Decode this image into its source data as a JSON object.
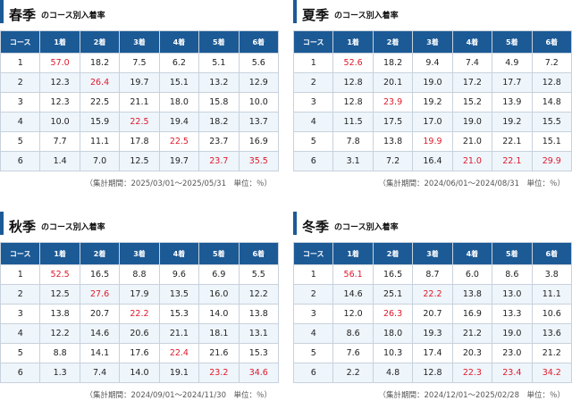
{
  "colors": {
    "header_bg": "#1c5a96",
    "alt_row_bg": "#eef5fb",
    "highlight": "#e0192b",
    "border": "#c8d2dc"
  },
  "headers": [
    "コース",
    "1着",
    "2着",
    "3着",
    "4着",
    "5着",
    "6着"
  ],
  "subtitle": "のコース別入着率",
  "panels": [
    {
      "season": "春季",
      "rows": [
        [
          "1",
          "57.0",
          "18.2",
          "7.5",
          "6.2",
          "5.1",
          "5.6"
        ],
        [
          "2",
          "12.3",
          "26.4",
          "19.7",
          "15.1",
          "13.2",
          "12.9"
        ],
        [
          "3",
          "12.3",
          "22.5",
          "21.1",
          "18.0",
          "15.8",
          "10.0"
        ],
        [
          "4",
          "10.0",
          "15.9",
          "22.5",
          "19.4",
          "18.2",
          "13.7"
        ],
        [
          "5",
          "7.7",
          "11.1",
          "17.8",
          "22.5",
          "23.7",
          "16.9"
        ],
        [
          "6",
          "1.4",
          "7.0",
          "12.5",
          "19.7",
          "23.7",
          "35.5"
        ]
      ],
      "highlight": [
        [
          0,
          1
        ],
        [
          1,
          2
        ],
        [
          3,
          3
        ],
        [
          4,
          4
        ],
        [
          5,
          5
        ],
        [
          5,
          6
        ]
      ],
      "note": "（集計期間：2025/03/01〜2025/05/31　単位：％）"
    },
    {
      "season": "夏季",
      "rows": [
        [
          "1",
          "52.6",
          "18.2",
          "9.4",
          "7.4",
          "4.9",
          "7.2"
        ],
        [
          "2",
          "12.8",
          "20.1",
          "19.0",
          "17.2",
          "17.7",
          "12.8"
        ],
        [
          "3",
          "12.8",
          "23.9",
          "19.2",
          "15.2",
          "13.9",
          "14.8"
        ],
        [
          "4",
          "11.5",
          "17.5",
          "17.0",
          "19.0",
          "19.2",
          "15.5"
        ],
        [
          "5",
          "7.8",
          "13.8",
          "19.9",
          "21.0",
          "22.1",
          "15.1"
        ],
        [
          "6",
          "3.1",
          "7.2",
          "16.4",
          "21.0",
          "22.1",
          "29.9"
        ]
      ],
      "highlight": [
        [
          0,
          1
        ],
        [
          2,
          2
        ],
        [
          4,
          3
        ],
        [
          5,
          4
        ],
        [
          5,
          5
        ],
        [
          5,
          6
        ]
      ],
      "note": "（集計期間：2024/06/01〜2024/08/31　単位：％）"
    },
    {
      "season": "秋季",
      "rows": [
        [
          "1",
          "52.5",
          "16.5",
          "8.8",
          "9.6",
          "6.9",
          "5.5"
        ],
        [
          "2",
          "12.5",
          "27.6",
          "17.9",
          "13.5",
          "16.0",
          "12.2"
        ],
        [
          "3",
          "13.8",
          "20.7",
          "22.2",
          "15.3",
          "14.0",
          "13.8"
        ],
        [
          "4",
          "12.2",
          "14.6",
          "20.6",
          "21.1",
          "18.1",
          "13.1"
        ],
        [
          "5",
          "8.8",
          "14.1",
          "17.6",
          "22.4",
          "21.6",
          "15.3"
        ],
        [
          "6",
          "1.3",
          "7.4",
          "14.0",
          "19.1",
          "23.2",
          "34.6"
        ]
      ],
      "highlight": [
        [
          0,
          1
        ],
        [
          1,
          2
        ],
        [
          2,
          3
        ],
        [
          4,
          4
        ],
        [
          5,
          5
        ],
        [
          5,
          6
        ]
      ],
      "note": "（集計期間：2024/09/01〜2024/11/30　単位：％）"
    },
    {
      "season": "冬季",
      "rows": [
        [
          "1",
          "56.1",
          "16.5",
          "8.7",
          "6.0",
          "8.6",
          "3.8"
        ],
        [
          "2",
          "14.6",
          "25.1",
          "22.2",
          "13.8",
          "13.0",
          "11.1"
        ],
        [
          "3",
          "12.0",
          "26.3",
          "20.7",
          "16.9",
          "13.3",
          "10.6"
        ],
        [
          "4",
          "8.6",
          "18.0",
          "19.3",
          "21.2",
          "19.0",
          "13.6"
        ],
        [
          "5",
          "7.6",
          "10.3",
          "17.4",
          "20.3",
          "23.0",
          "21.2"
        ],
        [
          "6",
          "2.2",
          "4.8",
          "12.8",
          "22.3",
          "23.4",
          "34.2"
        ]
      ],
      "highlight": [
        [
          0,
          1
        ],
        [
          1,
          3
        ],
        [
          2,
          2
        ],
        [
          5,
          4
        ],
        [
          5,
          5
        ],
        [
          5,
          6
        ]
      ],
      "note": "（集計期間：2024/12/01〜2025/02/28　単位：％）"
    }
  ]
}
